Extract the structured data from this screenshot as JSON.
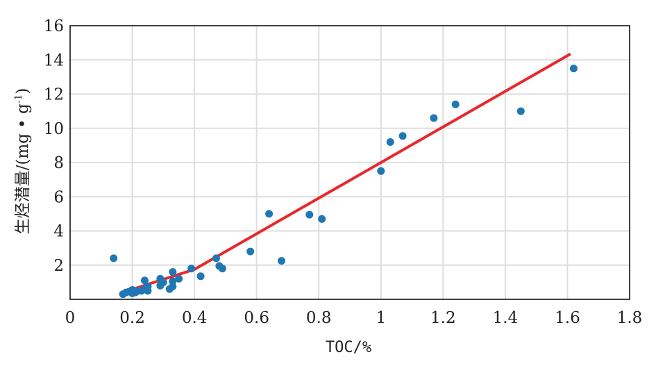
{
  "chart_data": {
    "type": "scatter",
    "xlabel": "TOC/%",
    "ylabel_main": "生烃潜量/(mg • g",
    "ylabel_sup": "-1",
    "ylabel_close": ")",
    "xlim": [
      0,
      1.8
    ],
    "ylim": [
      0,
      16
    ],
    "x_ticks": [
      0,
      0.2,
      0.4,
      0.6,
      0.8,
      1,
      1.2,
      1.4,
      1.6,
      1.8
    ],
    "x_tick_labels": [
      "0",
      "0.2",
      "0.4",
      "0.6",
      "0.8",
      "1",
      "1.2",
      "1.4",
      "1.6",
      "1.8"
    ],
    "y_ticks": [
      2,
      4,
      6,
      8,
      10,
      12,
      14,
      16
    ],
    "y_tick_labels": [
      "2",
      "4",
      "6",
      "8",
      "10",
      "12",
      "14",
      "16"
    ],
    "grid": true,
    "colors": {
      "points": "#1f77b4",
      "fit_line": "#e8282b",
      "grid": "#dddddd"
    },
    "series": [
      {
        "kind": "points",
        "x": [
          0.14,
          0.17,
          0.18,
          0.19,
          0.2,
          0.2,
          0.21,
          0.22,
          0.23,
          0.24,
          0.24,
          0.25,
          0.25,
          0.29,
          0.29,
          0.3,
          0.32,
          0.33,
          0.33,
          0.33,
          0.35,
          0.39,
          0.42,
          0.47,
          0.48,
          0.49,
          0.58,
          0.64,
          0.68,
          0.77,
          0.81,
          1.0,
          1.03,
          1.07,
          1.17,
          1.24,
          1.45,
          1.62
        ],
        "y": [
          2.4,
          0.3,
          0.4,
          0.45,
          0.35,
          0.55,
          0.4,
          0.5,
          0.5,
          0.6,
          1.1,
          0.5,
          0.75,
          1.2,
          0.8,
          1.0,
          0.6,
          0.75,
          1.05,
          1.6,
          1.2,
          1.8,
          1.35,
          2.4,
          1.95,
          1.8,
          2.8,
          5.0,
          2.25,
          4.95,
          4.7,
          7.5,
          9.2,
          9.55,
          10.6,
          11.4,
          11.0,
          13.5
        ]
      },
      {
        "kind": "line",
        "x": [
          0.16,
          0.4,
          1.61
        ],
        "y": [
          0.35,
          1.75,
          14.35
        ]
      }
    ]
  }
}
